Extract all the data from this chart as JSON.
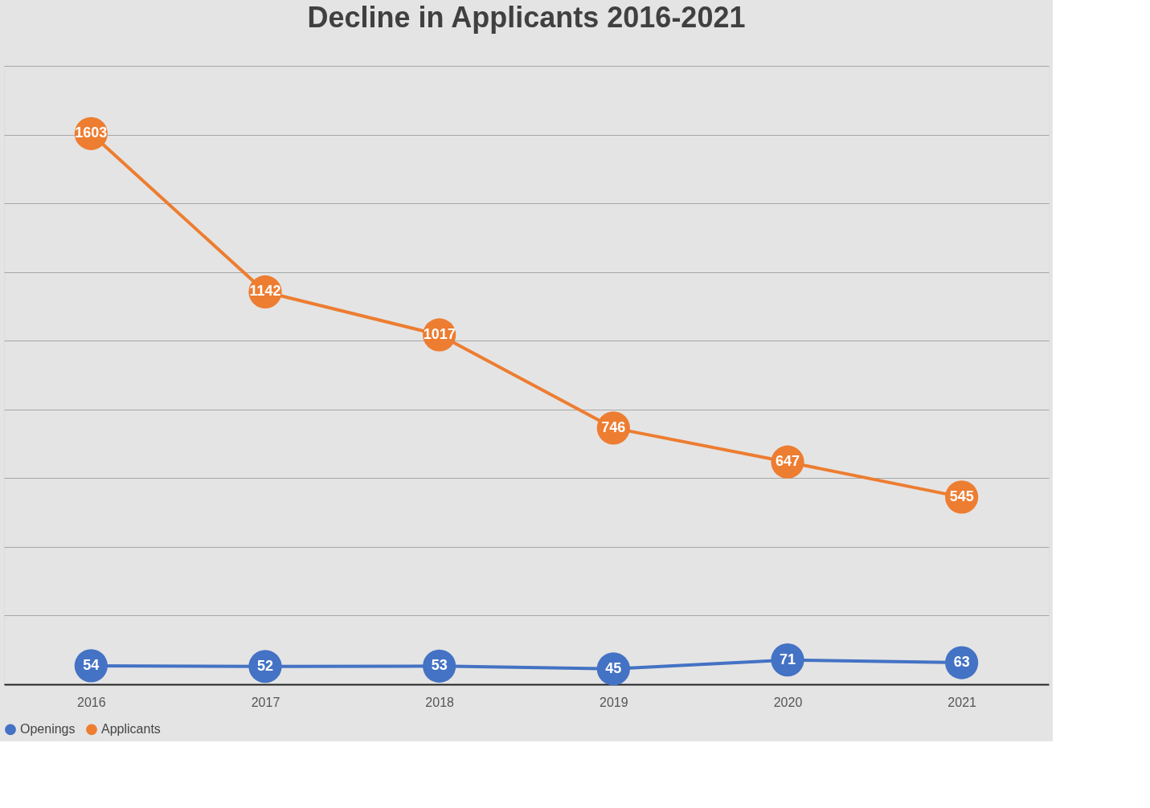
{
  "chart_data": {
    "type": "line",
    "title": "Decline in Applicants 2016-2021",
    "categories": [
      "2016",
      "2017",
      "2018",
      "2019",
      "2020",
      "2021"
    ],
    "series": [
      {
        "name": "Openings",
        "color": "#4472c4",
        "values": [
          54,
          52,
          53,
          45,
          71,
          63
        ]
      },
      {
        "name": "Applicants",
        "color": "#ed7d31",
        "values": [
          1603,
          1142,
          1017,
          746,
          647,
          545
        ]
      }
    ],
    "ylim": [
      0,
      1800
    ],
    "yticks": [
      {
        "value": 0,
        "label": null
      },
      {
        "value": 200,
        "label": null
      },
      {
        "value": 400,
        "label": null
      },
      {
        "value": 600,
        "label": null
      },
      {
        "value": 800,
        "label": null
      },
      {
        "value": 1000,
        "label": null
      },
      {
        "value": 1200,
        "label": null
      },
      {
        "value": 1400,
        "label": null
      },
      {
        "value": 1600,
        "label": null
      },
      {
        "value": 1800,
        "label": null
      }
    ],
    "tick_labels": "x",
    "grid": "y",
    "legend": "bottom",
    "marker": "circle",
    "line_style": "solid",
    "data_labels": true
  }
}
